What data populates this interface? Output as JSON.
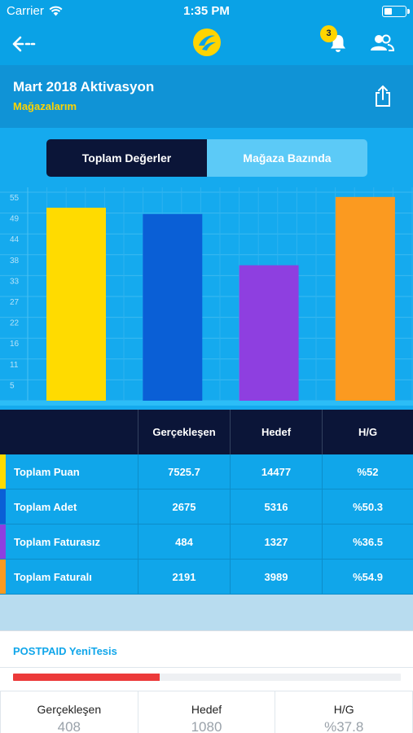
{
  "status_bar": {
    "carrier": "Carrier",
    "time": "1:35 PM"
  },
  "nav": {
    "notification_count": "3"
  },
  "header": {
    "title": "Mart 2018 Aktivasyon",
    "subtitle": "Mağazalarım"
  },
  "segmented": {
    "options": [
      "Toplam Değerler",
      "Mağaza Bazında"
    ],
    "selected": "Toplam Değerler"
  },
  "chart_data": {
    "type": "bar",
    "categories": [
      "Toplam Puan",
      "Toplam Adet",
      "Toplam Faturasız",
      "Toplam Faturalı"
    ],
    "values": [
      52,
      50.3,
      36.5,
      54.9
    ],
    "colors": [
      "#ffdb00",
      "#0a5fd6",
      "#8e3fe0",
      "#fb9a20"
    ],
    "yticks": [
      "55",
      "49",
      "44",
      "38",
      "33",
      "27",
      "22",
      "16",
      "11",
      "5"
    ],
    "ylim": [
      0,
      57.5
    ],
    "grid": true
  },
  "table": {
    "headers": [
      "",
      "Gerçekleşen",
      "Hedef",
      "H/G"
    ],
    "rows": [
      {
        "label": "Toplam Puan",
        "actual": "7525.7",
        "target": "14477",
        "ratio": "%52",
        "color": "#ffdb00"
      },
      {
        "label": "Toplam Adet",
        "actual": "2675",
        "target": "5316",
        "ratio": "%50.3",
        "color": "#0a5fd6"
      },
      {
        "label": "Toplam Faturasız",
        "actual": "484",
        "target": "1327",
        "ratio": "%36.5",
        "color": "#8e3fe0"
      },
      {
        "label": "Toplam Faturalı",
        "actual": "2191",
        "target": "3989",
        "ratio": "%54.9",
        "color": "#fb9a20"
      }
    ]
  },
  "postpaid": {
    "title": "POSTPAID YeniTesis",
    "progress": 0.378,
    "progress_color": "#ec3a3a",
    "stats": [
      {
        "label": "Gerçekleşen",
        "value": "408"
      },
      {
        "label": "Hedef",
        "value": "1080"
      },
      {
        "label": "H/G",
        "value": "%37.8"
      }
    ]
  },
  "colors": {
    "header_blue": "#0aa2e6",
    "accent_yellow": "#ffd400",
    "dark_navy": "#0b1538"
  }
}
